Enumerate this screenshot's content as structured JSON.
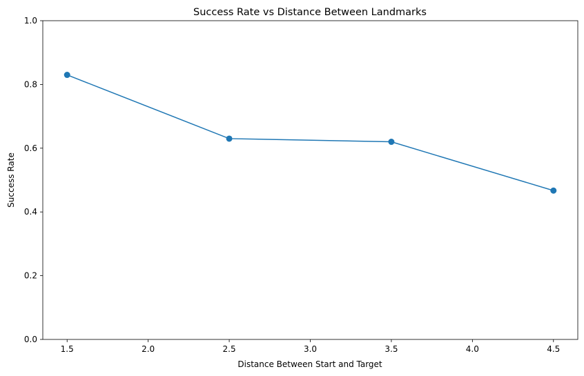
{
  "chart_data": {
    "type": "line",
    "title": "Success Rate vs Distance Between Landmarks",
    "xlabel": "Distance Between Start and Target",
    "ylabel": "Success Rate",
    "xlim": [
      1.35,
      4.65
    ],
    "ylim": [
      0.0,
      1.0
    ],
    "x_ticks": [
      1.5,
      2.0,
      2.5,
      3.0,
      3.5,
      4.0,
      4.5
    ],
    "x_tick_labels": [
      "1.5",
      "2.0",
      "2.5",
      "3.0",
      "3.5",
      "4.0",
      "4.5"
    ],
    "y_ticks": [
      0.0,
      0.2,
      0.4,
      0.6,
      0.8,
      1.0
    ],
    "y_tick_labels": [
      "0.0",
      "0.2",
      "0.4",
      "0.6",
      "0.8",
      "1.0"
    ],
    "grid": false,
    "legend": "none",
    "series": [
      {
        "color": "#1f77b4",
        "marker": "circle",
        "x": [
          1.5,
          2.5,
          3.5,
          4.5
        ],
        "y": [
          0.83,
          0.63,
          0.62,
          0.467
        ]
      }
    ]
  }
}
